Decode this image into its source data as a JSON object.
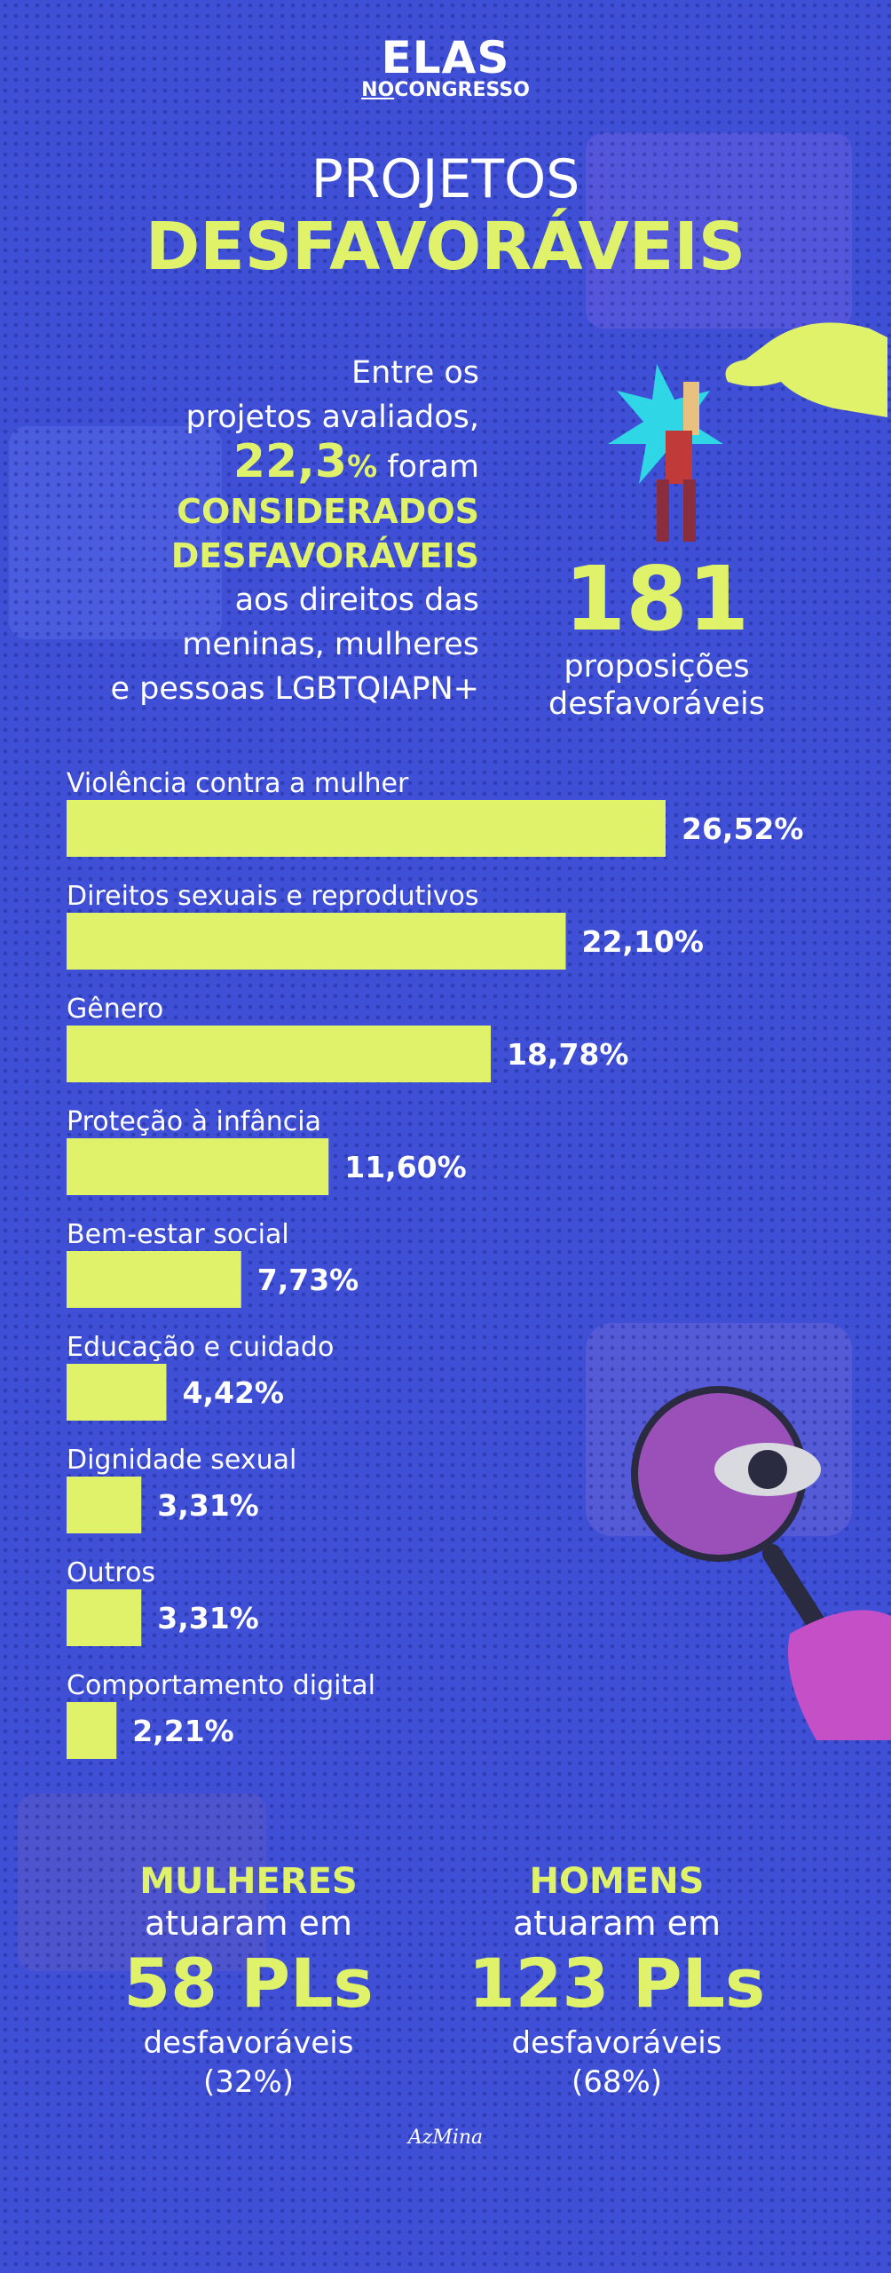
{
  "logo": {
    "main": "ELAS",
    "sub_prefix": "NO",
    "sub_word": "CONGRESSO"
  },
  "title": {
    "line1": "PROJETOS",
    "line2": "DESFAVORÁVEIS"
  },
  "intro": {
    "l1": "Entre os",
    "l2": "projetos avaliados,",
    "pct_num": "22,3",
    "pct_sym": "%",
    "foram": " foram",
    "c1": "CONSIDERADOS",
    "c2": "DESFAVORÁVEIS",
    "l3": "aos direitos das",
    "l4": "meninas, mulheres",
    "l5": "e pessoas LGBTQIAPN+"
  },
  "stat": {
    "number": "181",
    "label1": "proposições",
    "label2": "desfavoráveis"
  },
  "chart_data": {
    "type": "bar",
    "orientation": "horizontal",
    "categories": [
      "Violência contra a mulher",
      "Direitos sexuais e reprodutivos",
      "Gênero",
      "Proteção à infância",
      "Bem-estar social",
      "Educação e cuidado",
      "Dignidade sexual",
      "Outros",
      "Comportamento digital"
    ],
    "values": [
      26.52,
      22.1,
      18.78,
      11.6,
      7.73,
      4.42,
      3.31,
      3.31,
      2.21
    ],
    "value_labels": [
      "26,52%",
      "22,10%",
      "18,78%",
      "11,60%",
      "7,73%",
      "4,42%",
      "3,31%",
      "3,31%",
      "2,21%"
    ],
    "bar_color": "#dff26a",
    "xlim": [
      0,
      26.52
    ]
  },
  "bottom": {
    "women": {
      "head": "MULHERES",
      "txt": "atuaram em",
      "num": "58 PLs",
      "desc": "desfavoráveis",
      "pct": "(32%)"
    },
    "men": {
      "head": "HOMENS",
      "txt": "atuaram em",
      "num": "123 PLs",
      "desc": "desfavoráveis",
      "pct": "(68%)"
    }
  },
  "signature": "AzMina",
  "colors": {
    "background": "#3f4fd6",
    "accent": "#dff26a",
    "text": "#ffffff"
  },
  "icons": {
    "pointing": "pointing-hand-icon",
    "magnifier": "magnifying-glass-eye-icon"
  }
}
